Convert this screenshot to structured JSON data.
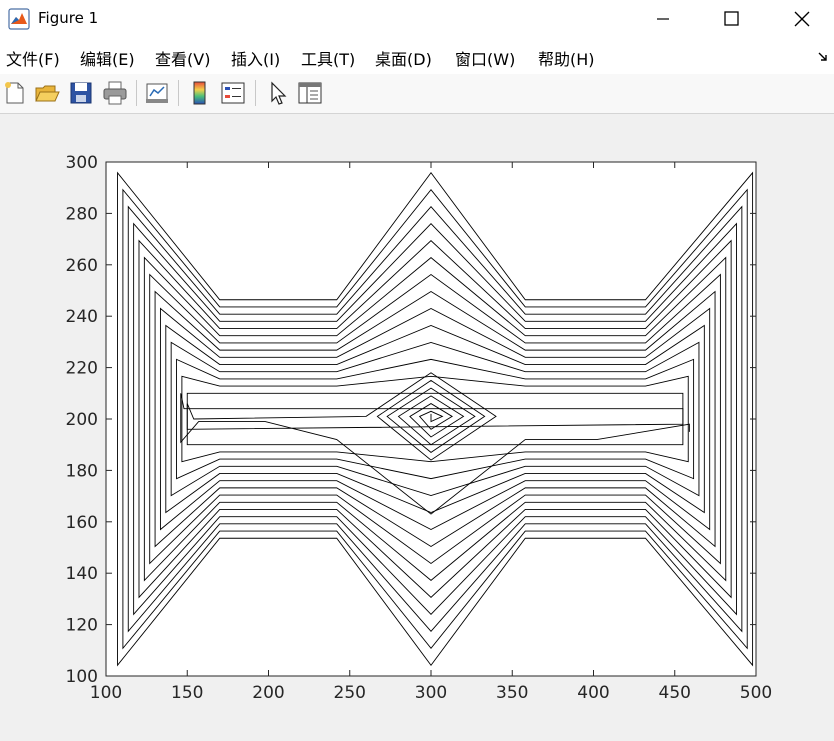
{
  "window": {
    "title": "Figure 1"
  },
  "menu": [
    "文件(F)",
    "编辑(E)",
    "查看(V)",
    "插入(I)",
    "工具(T)",
    "桌面(D)",
    "窗口(W)",
    "帮助(H)"
  ],
  "toolbar": [
    "new-figure-icon",
    "open-file-icon",
    "save-icon",
    "print-icon",
    "link-plot-icon",
    "colorbar-icon",
    "legend-icon",
    "select-arrow-icon",
    "property-editor-icon"
  ],
  "chart_data": {
    "type": "line",
    "title": "",
    "xlabel": "",
    "ylabel": "",
    "xlim": [
      100,
      500
    ],
    "ylim": [
      100,
      300
    ],
    "xticks": [
      100,
      150,
      200,
      250,
      300,
      350,
      400,
      450,
      500
    ],
    "yticks": [
      100,
      120,
      140,
      160,
      180,
      200,
      220,
      240,
      260,
      280,
      300
    ],
    "grid": false,
    "line_color": "#000000",
    "series": [
      {
        "name": "",
        "points": [
          [
            300,
            202
          ],
          [
            300,
            199
          ],
          [
            307,
            201
          ],
          [
            300,
            203
          ],
          [
            293,
            201
          ],
          [
            300,
            196
          ],
          [
            313,
            201
          ],
          [
            300,
            206
          ],
          [
            287,
            201
          ],
          [
            300,
            193
          ],
          [
            320,
            201
          ],
          [
            300,
            209
          ],
          [
            280,
            201
          ],
          [
            300,
            190
          ],
          [
            327,
            201
          ],
          [
            300,
            212
          ],
          [
            273,
            201
          ],
          [
            300,
            187
          ],
          [
            333,
            201
          ],
          [
            300,
            215
          ],
          [
            267,
            201
          ],
          [
            300,
            184
          ],
          [
            340,
            201
          ],
          [
            300,
            218
          ],
          [
            260,
            201
          ],
          [
            154,
            200
          ],
          [
            150,
            206
          ],
          [
            150,
            196
          ],
          [
            455,
            198
          ],
          [
            455,
            204
          ],
          [
            148,
            204
          ],
          [
            146,
            210
          ],
          [
            146,
            191
          ],
          [
            157,
            199
          ],
          [
            198,
            199
          ],
          [
            242,
            192
          ],
          [
            300,
            163
          ],
          [
            358,
            192
          ],
          [
            402,
            192
          ],
          [
            459,
            198
          ],
          [
            459,
            195
          ]
        ]
      }
    ],
    "concentric_rings": {
      "count": 14,
      "x_left_inner": 150,
      "x_left_step": -3.3,
      "x_right_inner": 455,
      "x_right_step": 3.3,
      "center_x": 300,
      "peak_inner": 210,
      "peak_step": 6.6,
      "valley_inner": 190,
      "valley_step": -6.6,
      "plateau_top_inner": 210,
      "plateau_top_step": 2.8,
      "plateau_bottom_inner": 190,
      "plateau_bottom_step": -2.8,
      "corner_top_inner": 210,
      "corner_top_step": 6.6,
      "corner_bottom_inner": 190,
      "corner_bottom_step": -6.6
    }
  }
}
